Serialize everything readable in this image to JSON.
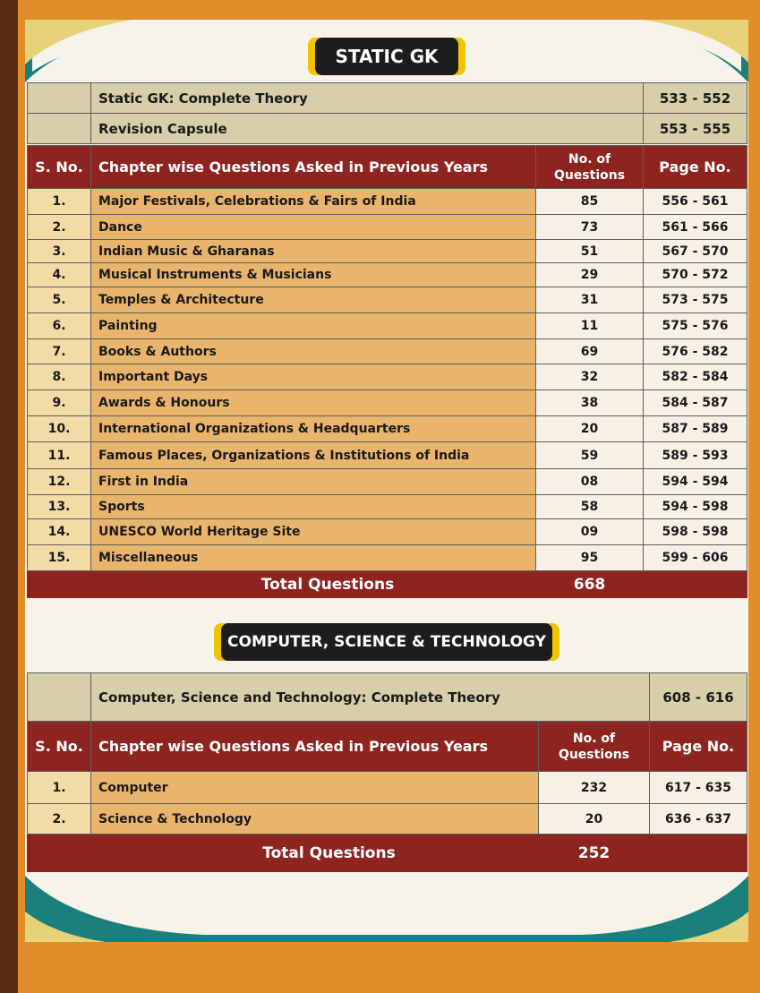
{
  "static_gk": {
    "title": "STATIC GK",
    "theory": [
      {
        "label": "Static GK: Complete Theory",
        "pages": "533 - 552"
      },
      {
        "label": "Revision Capsule",
        "pages": "553 - 555"
      }
    ],
    "headers": {
      "sno": "S. No.",
      "chapter": "Chapter wise Questions Asked in Previous Years",
      "questions": "No. of Questions",
      "page": "Page No."
    },
    "rows": [
      {
        "sno": "1.",
        "chapter": "Major Festivals, Celebrations & Fairs of India",
        "questions": "85",
        "pages": "556 - 561"
      },
      {
        "sno": "2.",
        "chapter": "Dance",
        "questions": "73",
        "pages": "561 - 566"
      },
      {
        "sno": "3.",
        "chapter": "Indian Music & Gharanas",
        "questions": "51",
        "pages": "567 - 570"
      },
      {
        "sno": "4.",
        "chapter": "Musical Instruments & Musicians",
        "questions": "29",
        "pages": "570 - 572"
      },
      {
        "sno": "5.",
        "chapter": "Temples & Architecture",
        "questions": "31",
        "pages": "573 - 575"
      },
      {
        "sno": "6.",
        "chapter": "Painting",
        "questions": "11",
        "pages": "575 - 576"
      },
      {
        "sno": "7.",
        "chapter": "Books & Authors",
        "questions": "69",
        "pages": "576 - 582"
      },
      {
        "sno": "8.",
        "chapter": "Important Days",
        "questions": "32",
        "pages": "582 - 584"
      },
      {
        "sno": "9.",
        "chapter": "Awards & Honours",
        "questions": "38",
        "pages": "584 - 587"
      },
      {
        "sno": "10.",
        "chapter": "International Organizations & Headquarters",
        "questions": "20",
        "pages": "587 - 589"
      },
      {
        "sno": "11.",
        "chapter": "Famous Places, Organizations & Institutions of India",
        "questions": "59",
        "pages": "589 - 593"
      },
      {
        "sno": "12.",
        "chapter": "First in India",
        "questions": "08",
        "pages": "594 - 594"
      },
      {
        "sno": "13.",
        "chapter": "Sports",
        "questions": "58",
        "pages": "594 - 598"
      },
      {
        "sno": "14.",
        "chapter": "UNESCO World Heritage Site",
        "questions": "09",
        "pages": "598 - 598"
      },
      {
        "sno": "15.",
        "chapter": "Miscellaneous",
        "questions": "95",
        "pages": "599 - 606"
      }
    ],
    "total_label": "Total Questions",
    "total_value": "668"
  },
  "cst": {
    "title": "COMPUTER, SCIENCE & TECHNOLOGY",
    "theory": [
      {
        "label": "Computer, Science and Technology: Complete Theory",
        "pages": "608 - 616"
      }
    ],
    "headers": {
      "sno": "S. No.",
      "chapter": "Chapter wise Questions Asked in Previous Years",
      "questions": "No. of Questions",
      "page": "Page No."
    },
    "rows": [
      {
        "sno": "1.",
        "chapter": "Computer",
        "questions": "232",
        "pages": "617 - 635"
      },
      {
        "sno": "2.",
        "chapter": "Science & Technology",
        "questions": "20",
        "pages": "636 - 637"
      }
    ],
    "total_label": "Total Questions",
    "total_value": "252"
  },
  "colors": {
    "page_bg": "#f6f3ea",
    "book_edge": "#e38d2a",
    "header_red": "#8e2420",
    "theory_tan": "#d6cfa9",
    "chapter_orange": "#e9b46c",
    "pill_black": "#1d1d1d",
    "pill_yellow": "#f1c400",
    "swoosh_teal": "#1b7f7c"
  }
}
